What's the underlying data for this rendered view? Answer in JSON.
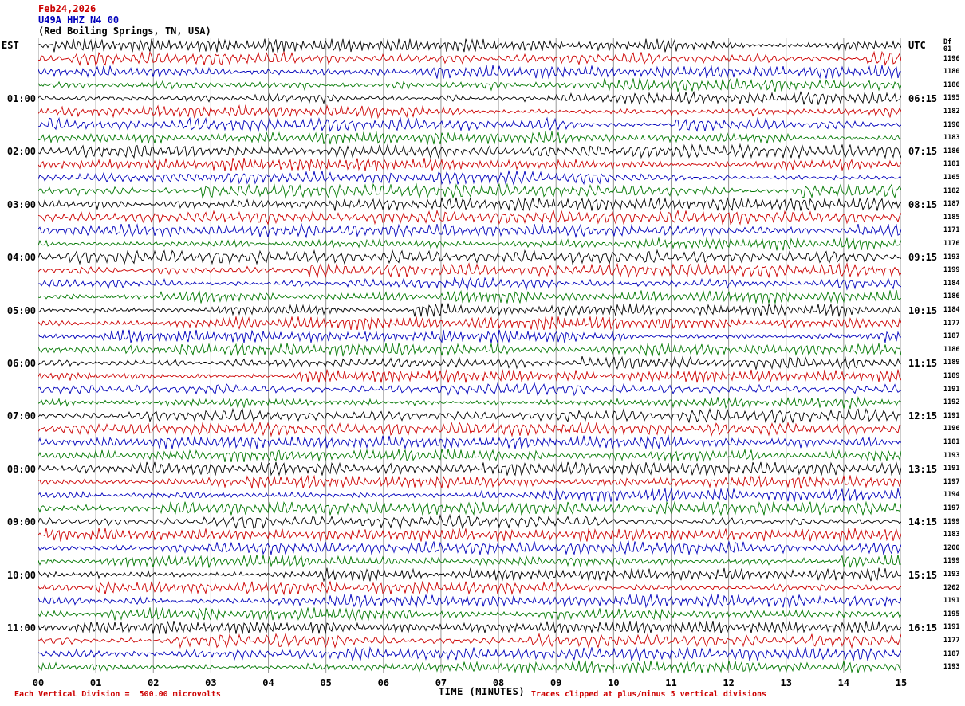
{
  "header": {
    "date": "Feb24,2026",
    "station": "U49A HHZ N4 00",
    "location": "(Red Boiling Springs, TN, USA)"
  },
  "axes": {
    "left_tz": "EST",
    "right_tz": "UTC",
    "left_labels": [
      "01:00",
      "02:00",
      "03:00",
      "04:00",
      "05:00",
      "06:00",
      "07:00",
      "08:00",
      "09:00",
      "10:00",
      "11:00"
    ],
    "right_labels": [
      "06:15",
      "07:15",
      "08:15",
      "09:15",
      "10:15",
      "11:15",
      "12:15",
      "13:15",
      "14:15",
      "15:15",
      "16:15"
    ],
    "x_ticks": [
      "00",
      "01",
      "02",
      "03",
      "04",
      "05",
      "06",
      "07",
      "08",
      "09",
      "10",
      "11",
      "12",
      "13",
      "14",
      "15"
    ],
    "x_title": "TIME (MINUTES)"
  },
  "right_column": {
    "header1": "Df",
    "header2": "01",
    "values": [
      1196,
      1180,
      1186,
      1195,
      1182,
      1190,
      1183,
      1186,
      1181,
      1165,
      1182,
      1187,
      1185,
      1171,
      1176,
      1193,
      1199,
      1184,
      1186,
      1184,
      1177,
      1187,
      1186,
      1189,
      1189,
      1191,
      1192,
      1191,
      1196,
      1181,
      1193,
      1191,
      1197,
      1194,
      1197,
      1199,
      1183,
      1200,
      1199,
      1193,
      1202,
      1191,
      1195,
      1191,
      1177,
      1187,
      1193
    ]
  },
  "footer": {
    "scale_note": "Each Vertical Division =  500.00 microvolts",
    "clip_note": "Traces clipped at plus/minus 5 vertical divisions"
  },
  "colors": {
    "trace_cycle": [
      "#000000",
      "#cc0000",
      "#0000bb",
      "#007700"
    ],
    "grid": "#999999",
    "accent_red": "#cc0000",
    "accent_blue": "#0000bb",
    "text": "#000000"
  },
  "chart_data": {
    "type": "line",
    "variant": "helicorder_seismogram",
    "title": "U49A HHZ N4 00 (Red Boiling Springs, TN, USA) Feb24,2026",
    "xlabel": "TIME (MINUTES)",
    "x_ticks": [
      "00",
      "01",
      "02",
      "03",
      "04",
      "05",
      "06",
      "07",
      "08",
      "09",
      "10",
      "11",
      "12",
      "13",
      "14",
      "15"
    ],
    "x_range_minutes": [
      0,
      15
    ],
    "rows": 48,
    "minutes_per_row": 15,
    "row_color_cycle": [
      "black",
      "red",
      "blue",
      "green"
    ],
    "left_axis": {
      "timezone": "EST",
      "hour_labels": [
        "01:00",
        "02:00",
        "03:00",
        "04:00",
        "05:00",
        "06:00",
        "07:00",
        "08:00",
        "09:00",
        "10:00",
        "11:00"
      ],
      "hour_label_every_n_rows": 4
    },
    "right_axis": {
      "timezone": "UTC",
      "hour_labels": [
        "06:15",
        "07:15",
        "08:15",
        "09:15",
        "10:15",
        "11:15",
        "12:15",
        "13:15",
        "14:15",
        "15:15",
        "16:15"
      ]
    },
    "right_value_column": {
      "header": [
        "Df",
        "01"
      ],
      "values": [
        1196,
        1180,
        1186,
        1195,
        1182,
        1190,
        1183,
        1186,
        1181,
        1165,
        1182,
        1187,
        1185,
        1171,
        1176,
        1193,
        1199,
        1184,
        1186,
        1184,
        1177,
        1187,
        1186,
        1189,
        1189,
        1191,
        1192,
        1191,
        1196,
        1181,
        1193,
        1191,
        1197,
        1194,
        1197,
        1199,
        1183,
        1200,
        1199,
        1193,
        1202,
        1191,
        1195,
        1191,
        1177,
        1187,
        1193
      ]
    },
    "scale": "Each Vertical Division =  500.00 microvolts",
    "clipping": "Traces clipped at plus/minus 5 vertical divisions",
    "grid": "vertical gridlines at every minute (0-15)",
    "signal": "continuous background seismic noise per 15-minute row; individual sample values are not labeled on the plot"
  }
}
